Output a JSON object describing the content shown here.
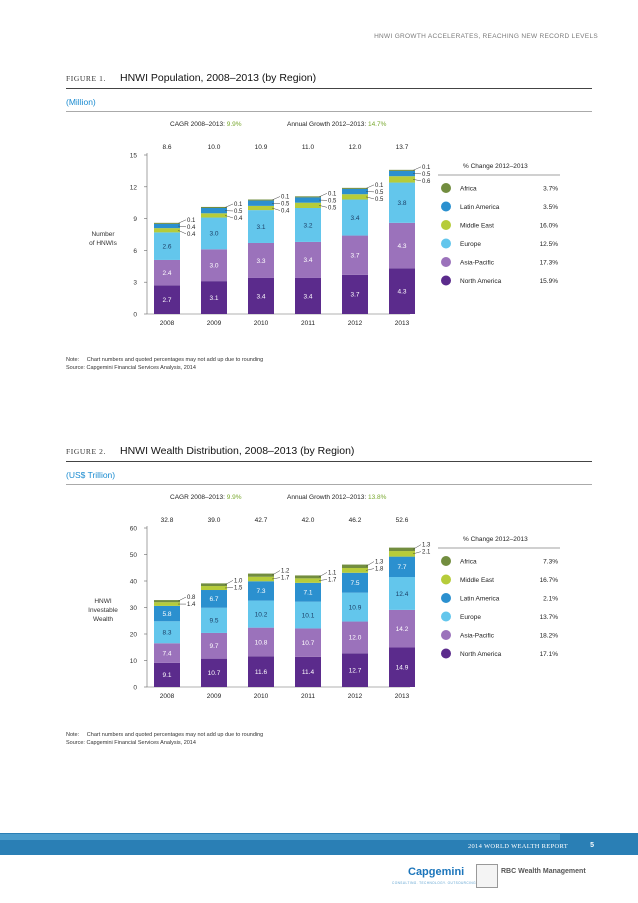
{
  "page": {
    "running_header": "HNWI GROWTH ACCELERATES, REACHING NEW RECORD LEVELS",
    "footer_title": "2014 WORLD WEALTH REPORT",
    "page_number": "5",
    "logo_capgemini": "Capgemini",
    "logo_capgemini_sub": "CONSULTING. TECHNOLOGY. OUTSOURCING",
    "logo_rbc": "RBC Wealth Management"
  },
  "figure1": {
    "label": "FIGURE 1.",
    "title": "HNWI Population, 2008–2013 (by Region)",
    "unit": "(Million)",
    "note_label": "Note:",
    "note_text": "Chart numbers and quoted percentages may not add up due to rounding",
    "source": "Source: Capgemini Financial Services Analysis, 2014"
  },
  "figure2": {
    "label": "FIGURE 2.",
    "title": "HNWI Wealth Distribution, 2008–2013 (by Region)",
    "unit": "(US$ Trillion)",
    "note_label": "Note:",
    "note_text": "Chart numbers and quoted percentages may not add up due to rounding",
    "source": "Source: Capgemini Financial Services Analysis, 2014"
  },
  "chart_data": [
    {
      "type": "bar",
      "stacked": true,
      "categories": [
        "2008",
        "2009",
        "2010",
        "2011",
        "2012",
        "2013"
      ],
      "totals": [
        "8.6",
        "10.0",
        "10.9",
        "11.0",
        "12.0",
        "13.7"
      ],
      "ylabel": "Number of HNWIs",
      "ylim": [
        0,
        15
      ],
      "yticks": [
        0,
        3,
        6,
        9,
        12,
        15
      ],
      "cagr_label": "CAGR 2008–2013:",
      "cagr_value": "9.9%",
      "growth_label": "Annual Growth 2012–2013:",
      "growth_value": "14.7%",
      "legend_title": "% Change 2012–2013",
      "series": [
        {
          "name": "North America",
          "color": "#5b2b8c",
          "values": [
            2.7,
            3.1,
            3.4,
            3.4,
            3.7,
            4.3
          ],
          "change": "15.9%"
        },
        {
          "name": "Asia-Pacific",
          "color": "#9b72bb",
          "values": [
            2.4,
            3.0,
            3.3,
            3.4,
            3.7,
            4.3
          ],
          "change": "17.3%"
        },
        {
          "name": "Europe",
          "color": "#63c6ec",
          "values": [
            2.6,
            3.0,
            3.1,
            3.2,
            3.4,
            3.8
          ],
          "change": "12.5%"
        },
        {
          "name": "Middle East",
          "color": "#b6cc3a",
          "values": [
            0.4,
            0.4,
            0.4,
            0.5,
            0.5,
            0.6
          ],
          "change": "16.0%"
        },
        {
          "name": "Latin America",
          "color": "#2b90cf",
          "values": [
            0.4,
            0.5,
            0.5,
            0.5,
            0.5,
            0.5
          ],
          "change": "3.5%"
        },
        {
          "name": "Africa",
          "color": "#728d3f",
          "values": [
            0.1,
            0.1,
            0.1,
            0.1,
            0.1,
            0.1
          ],
          "change": "3.7%"
        }
      ],
      "legend_order": [
        "Africa",
        "Latin America",
        "Middle East",
        "Europe",
        "Asia-Pacific",
        "North America"
      ],
      "callout_series": [
        "Africa",
        "Latin America",
        "Middle East"
      ]
    },
    {
      "type": "bar",
      "stacked": true,
      "categories": [
        "2008",
        "2009",
        "2010",
        "2011",
        "2012",
        "2013"
      ],
      "totals": [
        "32.8",
        "39.0",
        "42.7",
        "42.0",
        "46.2",
        "52.6"
      ],
      "ylabel": "HNWI Investable Wealth",
      "ylim": [
        0,
        60
      ],
      "yticks": [
        0,
        10,
        20,
        30,
        40,
        50,
        60
      ],
      "cagr_label": "CAGR 2008–2013:",
      "cagr_value": "9.9%",
      "growth_label": "Annual Growth 2012–2013:",
      "growth_value": "13.8%",
      "legend_title": "% Change 2012–2013",
      "series": [
        {
          "name": "North America",
          "color": "#5b2b8c",
          "values": [
            9.1,
            10.7,
            11.6,
            11.4,
            12.7,
            14.9
          ],
          "change": "17.1%"
        },
        {
          "name": "Asia-Pacific",
          "color": "#9b72bb",
          "values": [
            7.4,
            9.7,
            10.8,
            10.7,
            12.0,
            14.2
          ],
          "change": "18.2%"
        },
        {
          "name": "Europe",
          "color": "#63c6ec",
          "values": [
            8.3,
            9.5,
            10.2,
            10.1,
            10.9,
            12.4
          ],
          "change": "13.7%"
        },
        {
          "name": "Latin America",
          "color": "#2b90cf",
          "values": [
            5.8,
            6.7,
            7.3,
            7.1,
            7.5,
            7.7
          ],
          "change": "2.1%"
        },
        {
          "name": "Middle East",
          "color": "#b6cc3a",
          "values": [
            1.4,
            1.5,
            1.7,
            1.7,
            1.8,
            2.1
          ],
          "change": "16.7%"
        },
        {
          "name": "Africa",
          "color": "#728d3f",
          "values": [
            0.8,
            1.0,
            1.2,
            1.1,
            1.3,
            1.3
          ],
          "change": "7.3%"
        }
      ],
      "legend_order": [
        "Africa",
        "Middle East",
        "Latin America",
        "Europe",
        "Asia-Pacific",
        "North America"
      ],
      "callout_series": [
        "Africa",
        "Middle East"
      ]
    }
  ]
}
